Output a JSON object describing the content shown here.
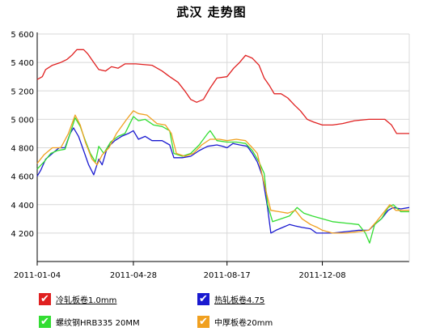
{
  "page": {
    "title": "武汉 走势图"
  },
  "legend": [
    {
      "label": "冷轧板卷1.0mm",
      "color": "#e02020",
      "checked": true,
      "underline": true
    },
    {
      "label": "热轧板卷4.75",
      "color": "#1a1ad0",
      "checked": true,
      "underline": true
    },
    {
      "label": "螺纹钢HRB335 20MM",
      "color": "#33dd33",
      "checked": true,
      "underline": false
    },
    {
      "label": "中厚板卷20mm",
      "color": "#f0a020",
      "checked": true,
      "underline": false
    }
  ],
  "chart_data": {
    "type": "line",
    "title": "武汉 走势图",
    "xlabel": "",
    "ylabel": "",
    "xlim": [
      "2011-01-04",
      "2012-03-20"
    ],
    "ylim": [
      4000,
      5600
    ],
    "yticks": [
      4200,
      4400,
      4600,
      4800,
      5000,
      5200,
      5400,
      5600
    ],
    "ytick_labels": [
      "4 200",
      "4 400",
      "4 600",
      "4 800",
      "5 000",
      "5 200",
      "5 400",
      "5 600"
    ],
    "xticks": [
      "2011-01-04",
      "2011-04-28",
      "2011-08-17",
      "2011-12-08"
    ],
    "xtick_labels": [
      "2011-01-04",
      "2011-04-28",
      "2011-08-17",
      "2011-12-08"
    ],
    "grid": true,
    "legend_position": "bottom",
    "series": [
      {
        "name": "冷轧板卷1.0mm",
        "color": "#e02020",
        "points": [
          [
            "2011-01-04",
            5280
          ],
          [
            "2011-01-10",
            5300
          ],
          [
            "2011-01-14",
            5350
          ],
          [
            "2011-01-22",
            5380
          ],
          [
            "2011-02-01",
            5400
          ],
          [
            "2011-02-08",
            5420
          ],
          [
            "2011-02-14",
            5450
          ],
          [
            "2011-02-20",
            5490
          ],
          [
            "2011-02-28",
            5490
          ],
          [
            "2011-03-05",
            5460
          ],
          [
            "2011-03-12",
            5400
          ],
          [
            "2011-03-18",
            5350
          ],
          [
            "2011-03-26",
            5340
          ],
          [
            "2011-04-02",
            5370
          ],
          [
            "2011-04-10",
            5360
          ],
          [
            "2011-04-18",
            5390
          ],
          [
            "2011-05-01",
            5390
          ],
          [
            "2011-05-20",
            5380
          ],
          [
            "2011-06-01",
            5340
          ],
          [
            "2011-06-10",
            5300
          ],
          [
            "2011-06-20",
            5260
          ],
          [
            "2011-06-28",
            5200
          ],
          [
            "2011-07-05",
            5140
          ],
          [
            "2011-07-12",
            5120
          ],
          [
            "2011-07-20",
            5140
          ],
          [
            "2011-07-28",
            5220
          ],
          [
            "2011-08-05",
            5290
          ],
          [
            "2011-08-17",
            5300
          ],
          [
            "2011-08-25",
            5360
          ],
          [
            "2011-09-01",
            5400
          ],
          [
            "2011-09-08",
            5450
          ],
          [
            "2011-09-16",
            5430
          ],
          [
            "2011-09-24",
            5380
          ],
          [
            "2011-09-30",
            5290
          ],
          [
            "2011-10-06",
            5240
          ],
          [
            "2011-10-12",
            5180
          ],
          [
            "2011-10-20",
            5180
          ],
          [
            "2011-10-28",
            5150
          ],
          [
            "2011-11-05",
            5100
          ],
          [
            "2011-11-12",
            5060
          ],
          [
            "2011-11-20",
            5000
          ],
          [
            "2011-11-28",
            4980
          ],
          [
            "2011-12-08",
            4960
          ],
          [
            "2011-12-20",
            4960
          ],
          [
            "2012-01-01",
            4970
          ],
          [
            "2012-01-15",
            4990
          ],
          [
            "2012-02-01",
            5000
          ],
          [
            "2012-02-20",
            5000
          ],
          [
            "2012-02-28",
            4960
          ],
          [
            "2012-03-05",
            4900
          ],
          [
            "2012-03-20",
            4900
          ]
        ]
      },
      {
        "name": "热轧板卷4.75",
        "color": "#1a1ad0",
        "points": [
          [
            "2011-01-04",
            4600
          ],
          [
            "2011-01-08",
            4640
          ],
          [
            "2011-01-14",
            4720
          ],
          [
            "2011-01-22",
            4760
          ],
          [
            "2011-01-30",
            4800
          ],
          [
            "2011-02-06",
            4800
          ],
          [
            "2011-02-12",
            4900
          ],
          [
            "2011-02-16",
            4940
          ],
          [
            "2011-02-22",
            4880
          ],
          [
            "2011-02-28",
            4780
          ],
          [
            "2011-03-06",
            4680
          ],
          [
            "2011-03-12",
            4610
          ],
          [
            "2011-03-18",
            4720
          ],
          [
            "2011-03-22",
            4680
          ],
          [
            "2011-03-28",
            4800
          ],
          [
            "2011-04-06",
            4850
          ],
          [
            "2011-04-14",
            4880
          ],
          [
            "2011-04-22",
            4900
          ],
          [
            "2011-04-28",
            4920
          ],
          [
            "2011-05-04",
            4860
          ],
          [
            "2011-05-12",
            4880
          ],
          [
            "2011-05-20",
            4850
          ],
          [
            "2011-06-01",
            4850
          ],
          [
            "2011-06-10",
            4820
          ],
          [
            "2011-06-15",
            4730
          ],
          [
            "2011-06-25",
            4730
          ],
          [
            "2011-07-05",
            4740
          ],
          [
            "2011-07-15",
            4780
          ],
          [
            "2011-07-25",
            4810
          ],
          [
            "2011-08-05",
            4820
          ],
          [
            "2011-08-12",
            4810
          ],
          [
            "2011-08-17",
            4800
          ],
          [
            "2011-08-24",
            4830
          ],
          [
            "2011-09-01",
            4820
          ],
          [
            "2011-09-10",
            4810
          ],
          [
            "2011-09-16",
            4760
          ],
          [
            "2011-09-22",
            4700
          ],
          [
            "2011-09-28",
            4600
          ],
          [
            "2011-10-04",
            4380
          ],
          [
            "2011-10-08",
            4200
          ],
          [
            "2011-10-14",
            4220
          ],
          [
            "2011-10-22",
            4240
          ],
          [
            "2011-10-30",
            4260
          ],
          [
            "2011-11-06",
            4250
          ],
          [
            "2011-11-14",
            4240
          ],
          [
            "2011-11-24",
            4230
          ],
          [
            "2011-12-01",
            4200
          ],
          [
            "2011-12-08",
            4200
          ],
          [
            "2011-12-20",
            4200
          ],
          [
            "2012-01-05",
            4210
          ],
          [
            "2012-01-20",
            4220
          ],
          [
            "2012-02-01",
            4220
          ],
          [
            "2012-02-08",
            4260
          ],
          [
            "2012-02-16",
            4300
          ],
          [
            "2012-02-24",
            4360
          ],
          [
            "2012-03-01",
            4380
          ],
          [
            "2012-03-10",
            4370
          ],
          [
            "2012-03-20",
            4380
          ]
        ]
      },
      {
        "name": "螺纹钢HRB335 20MM",
        "color": "#33dd33",
        "points": [
          [
            "2011-01-04",
            4650
          ],
          [
            "2011-01-12",
            4700
          ],
          [
            "2011-01-20",
            4760
          ],
          [
            "2011-01-28",
            4780
          ],
          [
            "2011-02-06",
            4790
          ],
          [
            "2011-02-12",
            4900
          ],
          [
            "2011-02-18",
            5010
          ],
          [
            "2011-02-24",
            4950
          ],
          [
            "2011-03-02",
            4850
          ],
          [
            "2011-03-08",
            4760
          ],
          [
            "2011-03-14",
            4700
          ],
          [
            "2011-03-18",
            4810
          ],
          [
            "2011-03-24",
            4760
          ],
          [
            "2011-04-01",
            4840
          ],
          [
            "2011-04-10",
            4880
          ],
          [
            "2011-04-18",
            4900
          ],
          [
            "2011-04-28",
            5020
          ],
          [
            "2011-05-04",
            4990
          ],
          [
            "2011-05-12",
            5000
          ],
          [
            "2011-05-22",
            4960
          ],
          [
            "2011-06-01",
            4950
          ],
          [
            "2011-06-10",
            4920
          ],
          [
            "2011-06-15",
            4760
          ],
          [
            "2011-06-25",
            4740
          ],
          [
            "2011-07-05",
            4760
          ],
          [
            "2011-07-15",
            4820
          ],
          [
            "2011-07-25",
            4900
          ],
          [
            "2011-07-28",
            4920
          ],
          [
            "2011-08-05",
            4850
          ],
          [
            "2011-08-17",
            4840
          ],
          [
            "2011-08-28",
            4840
          ],
          [
            "2011-09-08",
            4830
          ],
          [
            "2011-09-16",
            4780
          ],
          [
            "2011-09-24",
            4700
          ],
          [
            "2011-09-30",
            4620
          ],
          [
            "2011-10-04",
            4400
          ],
          [
            "2011-10-10",
            4280
          ],
          [
            "2011-10-20",
            4300
          ],
          [
            "2011-10-30",
            4320
          ],
          [
            "2011-11-08",
            4380
          ],
          [
            "2011-11-16",
            4340
          ],
          [
            "2011-11-26",
            4320
          ],
          [
            "2011-12-08",
            4300
          ],
          [
            "2011-12-20",
            4280
          ],
          [
            "2012-01-05",
            4270
          ],
          [
            "2012-01-20",
            4260
          ],
          [
            "2012-01-28",
            4200
          ],
          [
            "2012-02-02",
            4130
          ],
          [
            "2012-02-08",
            4260
          ],
          [
            "2012-02-16",
            4300
          ],
          [
            "2012-02-24",
            4380
          ],
          [
            "2012-03-01",
            4400
          ],
          [
            "2012-03-10",
            4350
          ],
          [
            "2012-03-20",
            4350
          ]
        ]
      },
      {
        "name": "中厚板卷20mm",
        "color": "#f0a020",
        "points": [
          [
            "2011-01-04",
            4690
          ],
          [
            "2011-01-12",
            4750
          ],
          [
            "2011-01-22",
            4800
          ],
          [
            "2011-02-01",
            4800
          ],
          [
            "2011-02-10",
            4900
          ],
          [
            "2011-02-18",
            5030
          ],
          [
            "2011-02-24",
            4960
          ],
          [
            "2011-03-02",
            4840
          ],
          [
            "2011-03-10",
            4720
          ],
          [
            "2011-03-16",
            4680
          ],
          [
            "2011-03-22",
            4750
          ],
          [
            "2011-03-30",
            4800
          ],
          [
            "2011-04-08",
            4900
          ],
          [
            "2011-04-20",
            5000
          ],
          [
            "2011-04-28",
            5060
          ],
          [
            "2011-05-04",
            5040
          ],
          [
            "2011-05-14",
            5030
          ],
          [
            "2011-05-26",
            4970
          ],
          [
            "2011-06-05",
            4960
          ],
          [
            "2011-06-12",
            4900
          ],
          [
            "2011-06-18",
            4760
          ],
          [
            "2011-06-28",
            4740
          ],
          [
            "2011-07-08",
            4760
          ],
          [
            "2011-07-18",
            4820
          ],
          [
            "2011-07-28",
            4860
          ],
          [
            "2011-08-08",
            4860
          ],
          [
            "2011-08-17",
            4850
          ],
          [
            "2011-08-28",
            4860
          ],
          [
            "2011-09-08",
            4850
          ],
          [
            "2011-09-16",
            4800
          ],
          [
            "2011-09-22",
            4760
          ],
          [
            "2011-09-28",
            4600
          ],
          [
            "2011-10-04",
            4450
          ],
          [
            "2011-10-08",
            4360
          ],
          [
            "2011-10-18",
            4350
          ],
          [
            "2011-10-28",
            4340
          ],
          [
            "2011-11-06",
            4360
          ],
          [
            "2011-11-14",
            4300
          ],
          [
            "2011-11-24",
            4260
          ],
          [
            "2011-12-02",
            4240
          ],
          [
            "2011-12-08",
            4220
          ],
          [
            "2011-12-20",
            4200
          ],
          [
            "2012-01-05",
            4200
          ],
          [
            "2012-01-20",
            4210
          ],
          [
            "2012-02-01",
            4220
          ],
          [
            "2012-02-10",
            4280
          ],
          [
            "2012-02-18",
            4340
          ],
          [
            "2012-02-26",
            4400
          ],
          [
            "2012-03-04",
            4360
          ],
          [
            "2012-03-12",
            4360
          ],
          [
            "2012-03-20",
            4360
          ]
        ]
      }
    ]
  }
}
